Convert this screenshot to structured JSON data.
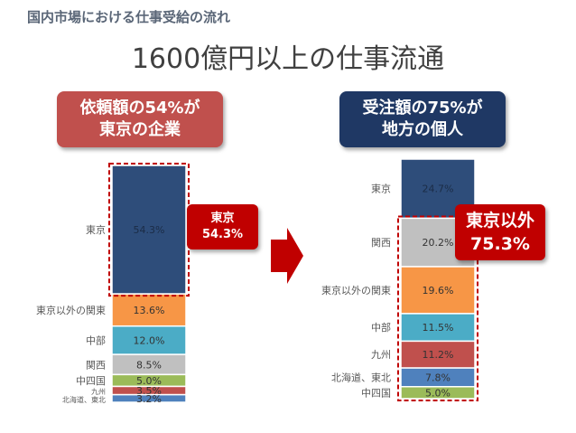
{
  "header": "国内市場における仕事受給の流れ",
  "main_title": "1600億円以上の仕事流通",
  "left_callout": {
    "line1": "依頼額の54%が",
    "line2": "東京の企業"
  },
  "right_callout": {
    "line1": "受注額の75%が",
    "line2": "地方の個人"
  },
  "left_badge": {
    "line1": "東京",
    "line2": "54.3%"
  },
  "right_badge": {
    "line1": "東京以外",
    "line2": "75.3%"
  },
  "colors": {
    "tokyo": "#2e4d7a",
    "kanto": "#f79646",
    "chubu": "#4bacc6",
    "kansai": "#c0c0c0",
    "chushikoku": "#9bbb59",
    "kyushu": "#c0504d",
    "hokkaido": "#4f81bd",
    "callout_red": "#c0504d",
    "callout_navy": "#1f3864",
    "badge_red": "#c00000",
    "arrow": "#c00000"
  },
  "chart_data": [
    {
      "type": "bar",
      "stacked": true,
      "series": [
        {
          "name": "東京",
          "value": 54.3,
          "label": "54.3%"
        },
        {
          "name": "東京以外の関東",
          "value": 13.6,
          "label": "13.6%"
        },
        {
          "name": "中部",
          "value": 12.0,
          "label": "12.0%"
        },
        {
          "name": "関西",
          "value": 8.5,
          "label": "8.5%"
        },
        {
          "name": "中四国",
          "value": 5.0,
          "label": "5.0%"
        },
        {
          "name": "九州",
          "value": 3.5,
          "label": "3.5%"
        },
        {
          "name": "北海道、東北",
          "value": 3.2,
          "label": "3.2%"
        }
      ]
    },
    {
      "type": "bar",
      "stacked": true,
      "series": [
        {
          "name": "東京",
          "value": 24.7,
          "label": "24.7%"
        },
        {
          "name": "関西",
          "value": 20.2,
          "label": "20.2%"
        },
        {
          "name": "東京以外の関東",
          "value": 19.6,
          "label": "19.6%"
        },
        {
          "name": "中部",
          "value": 11.5,
          "label": "11.5%"
        },
        {
          "name": "九州",
          "value": 11.2,
          "label": "11.2%"
        },
        {
          "name": "北海道、東北",
          "value": 7.8,
          "label": "7.8%"
        },
        {
          "name": "中四国",
          "value": 5.0,
          "label": "5.0%"
        }
      ]
    }
  ]
}
